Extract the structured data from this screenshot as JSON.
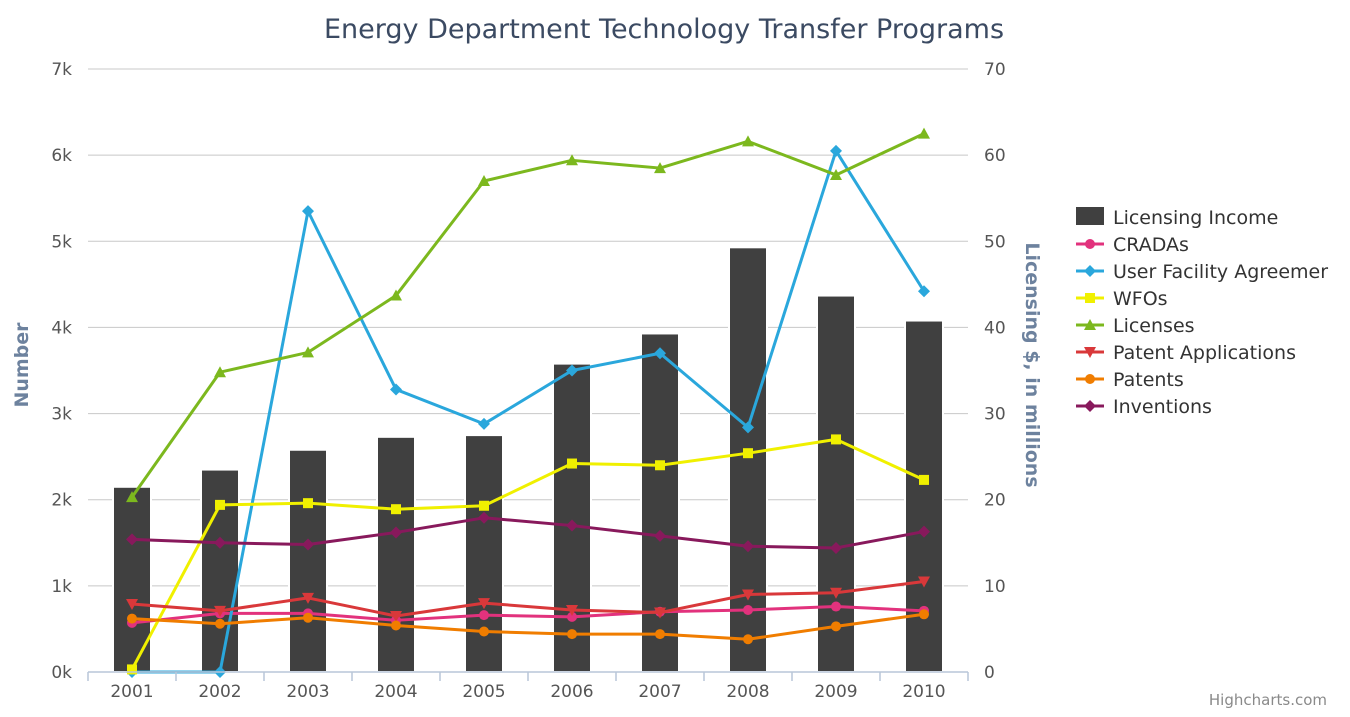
{
  "chart_data": {
    "type": "bar",
    "title": "Energy Department Technology Transfer Programs",
    "categories": [
      "2001",
      "2002",
      "2003",
      "2004",
      "2005",
      "2006",
      "2007",
      "2008",
      "2009",
      "2010"
    ],
    "y_left": {
      "label": "Number",
      "range": [
        0,
        7000
      ],
      "ticks": [
        0,
        1000,
        2000,
        3000,
        4000,
        5000,
        6000,
        7000
      ],
      "tick_labels": [
        "0k",
        "1k",
        "2k",
        "3k",
        "4k",
        "5k",
        "6k",
        "7k"
      ]
    },
    "y_right": {
      "label": "Licensing $, in millions",
      "range": [
        0,
        70
      ],
      "ticks": [
        0,
        10,
        20,
        30,
        40,
        50,
        60,
        70
      ],
      "tick_labels": [
        "0",
        "10",
        "20",
        "30",
        "40",
        "50",
        "60",
        "70"
      ]
    },
    "grid": true,
    "legend_position": "right",
    "series": [
      {
        "name": "Licensing Income",
        "type": "bar",
        "axis": "right",
        "color": "#404040",
        "marker": "square",
        "values": [
          21.5,
          23.5,
          25.8,
          27.3,
          27.5,
          35.8,
          39.3,
          49.3,
          43.7,
          40.8
        ]
      },
      {
        "name": "CRADAs",
        "type": "line",
        "axis": "left",
        "color": "#e2327d",
        "marker": "circle",
        "values": [
          570,
          680,
          680,
          600,
          660,
          640,
          700,
          720,
          760,
          710
        ]
      },
      {
        "name": "User Facility Agreemer",
        "type": "line",
        "axis": "left",
        "color": "#2aa7dc",
        "marker": "diamond",
        "values": [
          0,
          0,
          5350,
          3280,
          2880,
          3500,
          3700,
          2840,
          6050,
          4420
        ]
      },
      {
        "name": "WFOs",
        "type": "line",
        "axis": "left",
        "color": "#f0f000",
        "marker": "square",
        "values": [
          30,
          1940,
          1960,
          1890,
          1930,
          2420,
          2400,
          2540,
          2700,
          2230
        ]
      },
      {
        "name": "Licenses",
        "type": "line",
        "axis": "left",
        "color": "#7cb81e",
        "marker": "triangle",
        "values": [
          2030,
          3480,
          3710,
          4370,
          5700,
          5940,
          5850,
          6160,
          5770,
          6250
        ]
      },
      {
        "name": "Patent Applications",
        "type": "line",
        "axis": "left",
        "color": "#d9383a",
        "marker": "triangle-down",
        "values": [
          790,
          710,
          860,
          650,
          800,
          720,
          690,
          900,
          920,
          1050
        ]
      },
      {
        "name": "Patents",
        "type": "line",
        "axis": "left",
        "color": "#f07d00",
        "marker": "circle",
        "values": [
          620,
          560,
          630,
          540,
          470,
          440,
          440,
          380,
          530,
          670
        ]
      },
      {
        "name": "Inventions",
        "type": "line",
        "axis": "left",
        "color": "#88195c",
        "marker": "diamond",
        "values": [
          1540,
          1500,
          1480,
          1620,
          1790,
          1700,
          1580,
          1460,
          1440,
          1630
        ]
      }
    ]
  },
  "credits": "Highcharts.com"
}
